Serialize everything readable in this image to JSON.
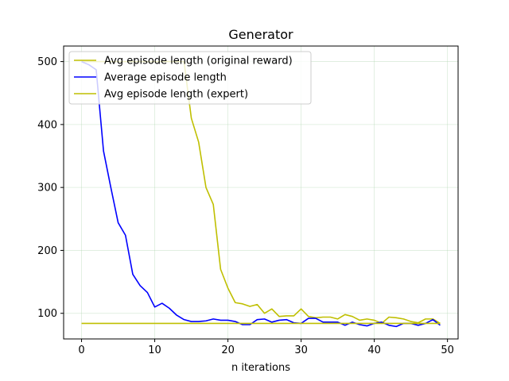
{
  "chart_data": {
    "type": "line",
    "title": "Generator",
    "xlabel": "n iterations",
    "ylabel": "",
    "xlim": [
      -2.45,
      51.45
    ],
    "ylim": [
      59.3,
      524.7
    ],
    "xticks": [
      0,
      10,
      20,
      30,
      40,
      50
    ],
    "yticks": [
      100,
      200,
      300,
      400,
      500
    ],
    "grid": true,
    "legend_position": "upper-left",
    "x": [
      0,
      1,
      2,
      3,
      4,
      5,
      6,
      7,
      8,
      9,
      10,
      11,
      12,
      13,
      14,
      15,
      16,
      17,
      18,
      19,
      20,
      21,
      22,
      23,
      24,
      25,
      26,
      27,
      28,
      29,
      30,
      31,
      32,
      33,
      34,
      35,
      36,
      37,
      38,
      39,
      40,
      41,
      42,
      43,
      44,
      45,
      46,
      47,
      48,
      49
    ],
    "series": [
      {
        "name": "Avg episode length (original reward)",
        "color": "#bfbf00",
        "values": [
          500,
          500,
          500,
          500,
          500,
          500,
          500,
          500,
          500,
          500,
          500,
          500,
          500,
          500,
          500,
          410,
          372,
          300,
          273,
          170,
          140,
          117,
          115,
          111,
          114,
          100,
          107,
          95,
          96,
          96,
          107,
          95,
          93,
          94,
          94,
          91,
          98,
          95,
          89,
          91,
          89,
          84,
          94,
          93,
          91,
          87,
          85,
          91,
          91,
          84
        ]
      },
      {
        "name": "Average episode length",
        "color": "#0000ff",
        "values": [
          500,
          495,
          487,
          358,
          300,
          244,
          224,
          162,
          144,
          133,
          110,
          116,
          108,
          97,
          90,
          87,
          87,
          88,
          91,
          89,
          89,
          87,
          82,
          82,
          90,
          91,
          86,
          89,
          90,
          85,
          84,
          92,
          92,
          86,
          86,
          86,
          81,
          86,
          82,
          80,
          84,
          86,
          81,
          79,
          84,
          84,
          81,
          84,
          90,
          81
        ]
      },
      {
        "name": "Avg episode length (expert)",
        "color": "#bfbf00",
        "values": [
          84,
          84,
          84,
          84,
          84,
          84,
          84,
          84,
          84,
          84,
          84,
          84,
          84,
          84,
          84,
          84,
          84,
          84,
          84,
          84,
          84,
          84,
          84,
          84,
          84,
          84,
          84,
          84,
          84,
          84,
          84,
          84,
          84,
          84,
          84,
          84,
          84,
          84,
          84,
          84,
          84,
          84,
          84,
          84,
          84,
          84,
          84,
          84,
          84,
          84
        ]
      }
    ]
  }
}
